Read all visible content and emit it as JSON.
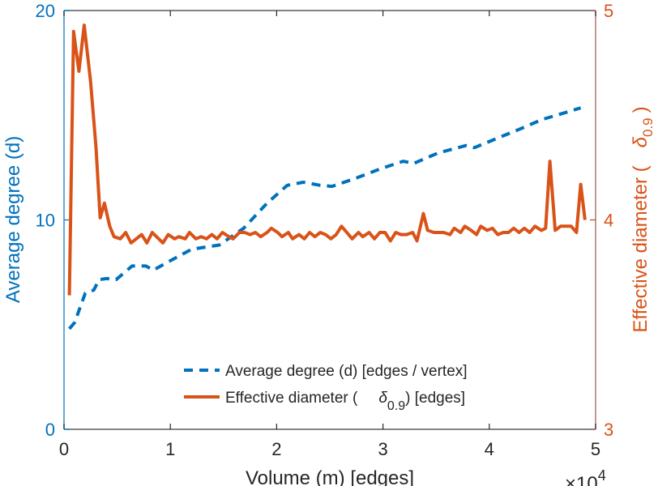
{
  "chart_data": {
    "type": "line",
    "title": "",
    "xlabel": "Volume (m) [edges]",
    "x_multiplier_label": "×10",
    "x_multiplier_exp": "4",
    "xlim": [
      0,
      5
    ],
    "x_ticks": [
      "0",
      "1",
      "2",
      "3",
      "4",
      "5"
    ],
    "y_left": {
      "label": "Average degree (d)",
      "ylim": [
        0,
        20
      ],
      "ticks": [
        "0",
        "10",
        "20"
      ],
      "color": "#0072BD"
    },
    "y_right": {
      "label_prefix": "Effective diameter (",
      "label_symbol": "δ",
      "label_sub": "0.9",
      "label_suffix": ")",
      "ylim": [
        3,
        5
      ],
      "ticks": [
        "3",
        "4",
        "5"
      ],
      "color": "#D95319"
    },
    "grid": false,
    "legend_position": "bottom-center",
    "series": [
      {
        "name": "Average degree (d) [edges / vertex]",
        "axis": "left",
        "style": "dashed",
        "color": "#0072BD",
        "x": [
          0.05,
          0.1,
          0.2,
          0.28,
          0.33,
          0.4,
          0.49,
          0.64,
          0.77,
          0.84,
          1.0,
          1.2,
          1.46,
          1.69,
          1.91,
          2.1,
          2.25,
          2.41,
          2.52,
          2.75,
          2.98,
          3.19,
          3.29,
          3.52,
          3.78,
          3.86,
          4.05,
          4.27,
          4.5,
          4.73,
          4.86
        ],
        "y": [
          4.8,
          5.1,
          6.5,
          6.65,
          7.15,
          7.2,
          7.15,
          7.8,
          7.8,
          7.6,
          8.05,
          8.6,
          8.8,
          9.6,
          10.8,
          11.65,
          11.8,
          11.65,
          11.6,
          12.0,
          12.45,
          12.8,
          12.7,
          13.2,
          13.55,
          13.45,
          13.85,
          14.3,
          14.8,
          15.15,
          15.35
        ]
      },
      {
        "name_prefix": "Effective diameter (",
        "name_symbol": "δ",
        "name_sub": "0.9",
        "name_suffix": ") [edges]",
        "axis": "right",
        "style": "solid",
        "color": "#D95319",
        "x": [
          0.05,
          0.09,
          0.14,
          0.19,
          0.25,
          0.3,
          0.34,
          0.38,
          0.43,
          0.47,
          0.53,
          0.58,
          0.63,
          0.68,
          0.73,
          0.78,
          0.83,
          0.89,
          0.93,
          0.98,
          1.04,
          1.08,
          1.14,
          1.18,
          1.24,
          1.29,
          1.34,
          1.39,
          1.44,
          1.49,
          1.55,
          1.59,
          1.65,
          1.7,
          1.75,
          1.8,
          1.85,
          1.91,
          1.95,
          2.01,
          2.05,
          2.11,
          2.15,
          2.21,
          2.26,
          2.31,
          2.36,
          2.41,
          2.46,
          2.51,
          2.56,
          2.61,
          2.66,
          2.71,
          2.77,
          2.81,
          2.87,
          2.92,
          2.97,
          3.02,
          3.07,
          3.12,
          3.17,
          3.22,
          3.28,
          3.32,
          3.38,
          3.42,
          3.48,
          3.53,
          3.57,
          3.63,
          3.67,
          3.73,
          3.77,
          3.83,
          3.88,
          3.92,
          3.98,
          4.03,
          4.08,
          4.13,
          4.18,
          4.23,
          4.28,
          4.33,
          4.38,
          4.43,
          4.49,
          4.53,
          4.57,
          4.62,
          4.67,
          4.72,
          4.77,
          4.82,
          4.86,
          4.9
        ],
        "y": [
          3.64,
          4.9,
          4.71,
          4.93,
          4.66,
          4.35,
          4.01,
          4.08,
          3.97,
          3.92,
          3.91,
          3.94,
          3.89,
          3.91,
          3.93,
          3.89,
          3.94,
          3.91,
          3.89,
          3.93,
          3.91,
          3.92,
          3.91,
          3.94,
          3.91,
          3.92,
          3.91,
          3.93,
          3.91,
          3.94,
          3.92,
          3.91,
          3.94,
          3.94,
          3.93,
          3.94,
          3.92,
          3.94,
          3.96,
          3.94,
          3.92,
          3.94,
          3.91,
          3.93,
          3.91,
          3.94,
          3.92,
          3.94,
          3.93,
          3.91,
          3.93,
          3.97,
          3.94,
          3.91,
          3.94,
          3.92,
          3.94,
          3.91,
          3.94,
          3.94,
          3.9,
          3.94,
          3.93,
          3.93,
          3.94,
          3.9,
          4.03,
          3.95,
          3.94,
          3.94,
          3.94,
          3.93,
          3.96,
          3.94,
          3.97,
          3.95,
          3.93,
          3.97,
          3.95,
          3.96,
          3.93,
          3.94,
          3.94,
          3.96,
          3.94,
          3.96,
          3.94,
          3.97,
          3.95,
          3.96,
          4.28,
          3.95,
          3.97,
          3.97,
          3.97,
          3.94,
          4.17,
          4.0
        ]
      }
    ]
  }
}
